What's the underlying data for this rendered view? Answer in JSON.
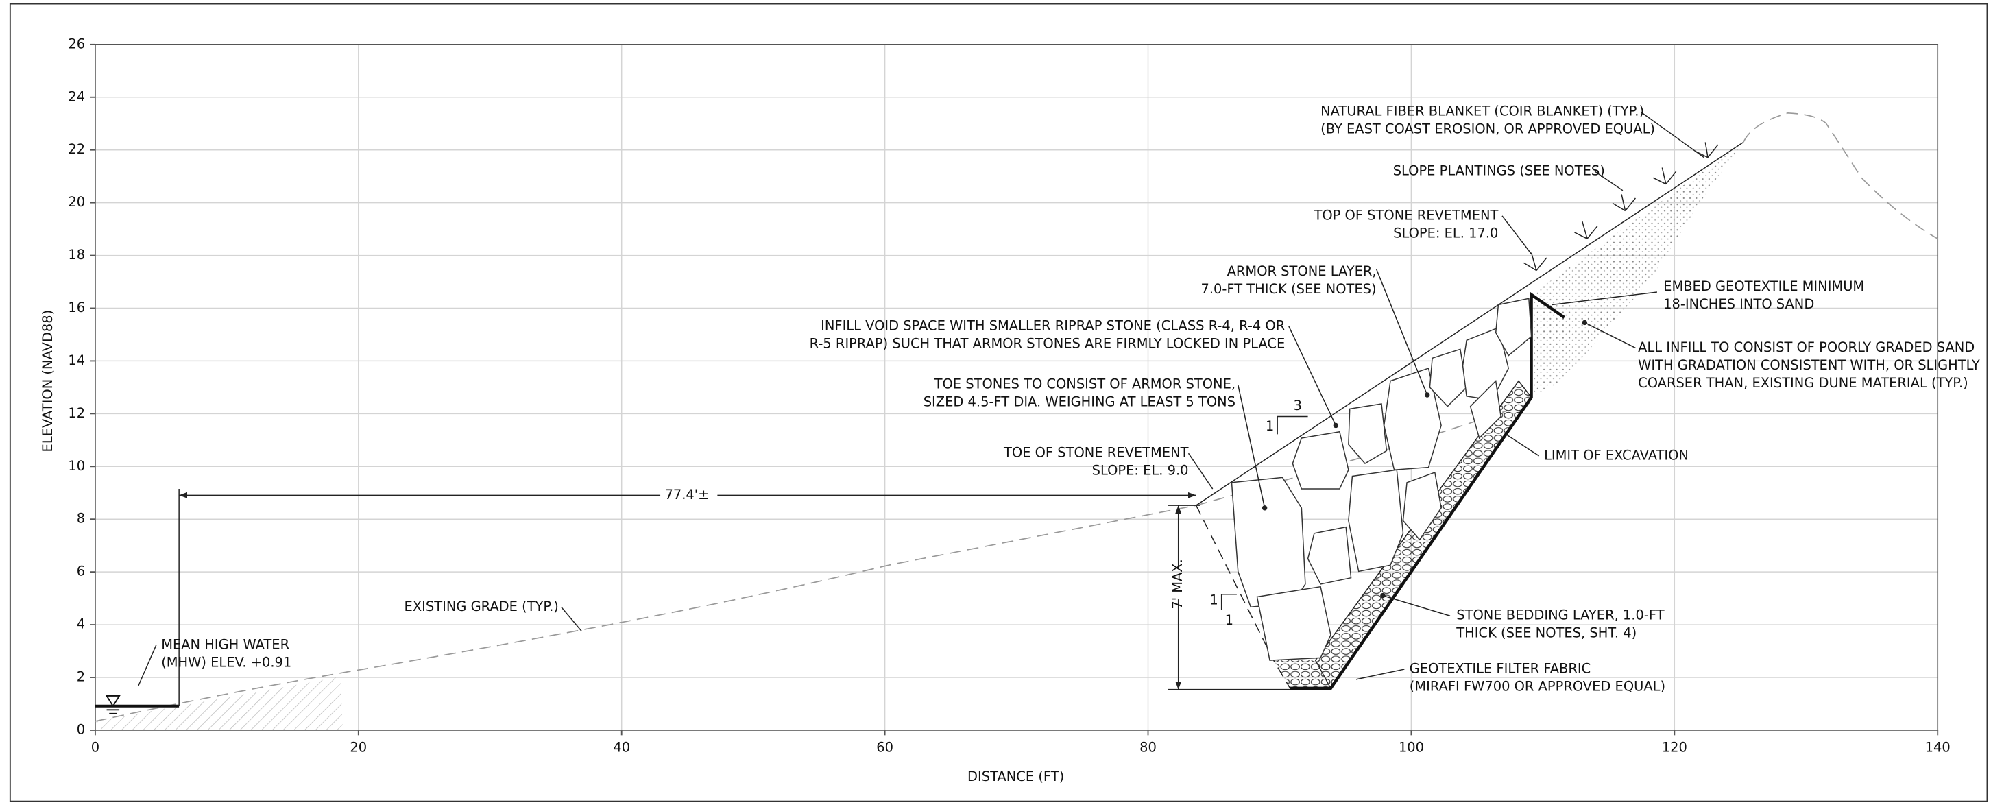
{
  "axes": {
    "x_label": "DISTANCE (FT)",
    "y_label": "ELEVATION (NAVD88)",
    "xticks": [
      0,
      20,
      40,
      60,
      80,
      100,
      120,
      140
    ],
    "yticks": [
      0,
      2,
      4,
      6,
      8,
      10,
      12,
      14,
      16,
      18,
      20,
      22,
      24,
      26
    ]
  },
  "annotations": [
    {
      "lines": [
        "NATURAL FIBER BLANKET (COIR BLANKET) (TYP.)",
        "(BY EAST COAST EROSION, OR APPROVED EQUAL)"
      ]
    },
    {
      "lines": [
        "SLOPE PLANTINGS (SEE NOTES)"
      ]
    },
    {
      "lines": [
        "TOP OF STONE REVETMENT",
        "SLOPE: EL. 17.0"
      ]
    },
    {
      "lines": [
        "ARMOR STONE LAYER,",
        "7.0-FT THICK (SEE NOTES)"
      ]
    },
    {
      "lines": [
        "EMBED GEOTEXTILE MINIMUM",
        "18-INCHES INTO SAND"
      ]
    },
    {
      "lines": [
        "INFILL VOID SPACE WITH SMALLER RIPRAP STONE (CLASS R-4, R-4 OR",
        "R-5 RIPRAP) SUCH THAT ARMOR STONES ARE FIRMLY LOCKED IN PLACE"
      ]
    },
    {
      "lines": [
        "ALL INFILL TO CONSIST OF POORLY GRADED SAND",
        "WITH GRADATION CONSISTENT WITH, OR SLIGHTLY",
        "COARSER THAN, EXISTING DUNE MATERIAL (TYP.)"
      ]
    },
    {
      "lines": [
        "TOE STONES TO CONSIST OF ARMOR STONE,",
        "SIZED 4.5-FT DIA. WEIGHING AT LEAST 5 TONS"
      ]
    },
    {
      "lines": [
        "LIMIT OF EXCAVATION"
      ]
    },
    {
      "lines": [
        "TOE OF STONE REVETMENT",
        "SLOPE: EL. 9.0"
      ]
    },
    {
      "lines": [
        "EXISTING GRADE (TYP.)"
      ]
    },
    {
      "lines": [
        "STONE BEDDING LAYER, 1.0-FT",
        "THICK (SEE NOTES, SHT. 4)"
      ]
    },
    {
      "lines": [
        "MEAN HIGH WATER",
        "(MHW) ELEV. +0.91"
      ]
    },
    {
      "lines": [
        "GEOTEXTILE FILTER FABRIC",
        "(MIRAFI FW700 OR APPROVED EQUAL)"
      ]
    }
  ],
  "dimensions": {
    "horizontal": "77.4'±",
    "vertical": "7' MAX."
  },
  "slopes": [
    {
      "rise": "1",
      "run": "3"
    },
    {
      "rise": "1",
      "run": "1"
    }
  ]
}
